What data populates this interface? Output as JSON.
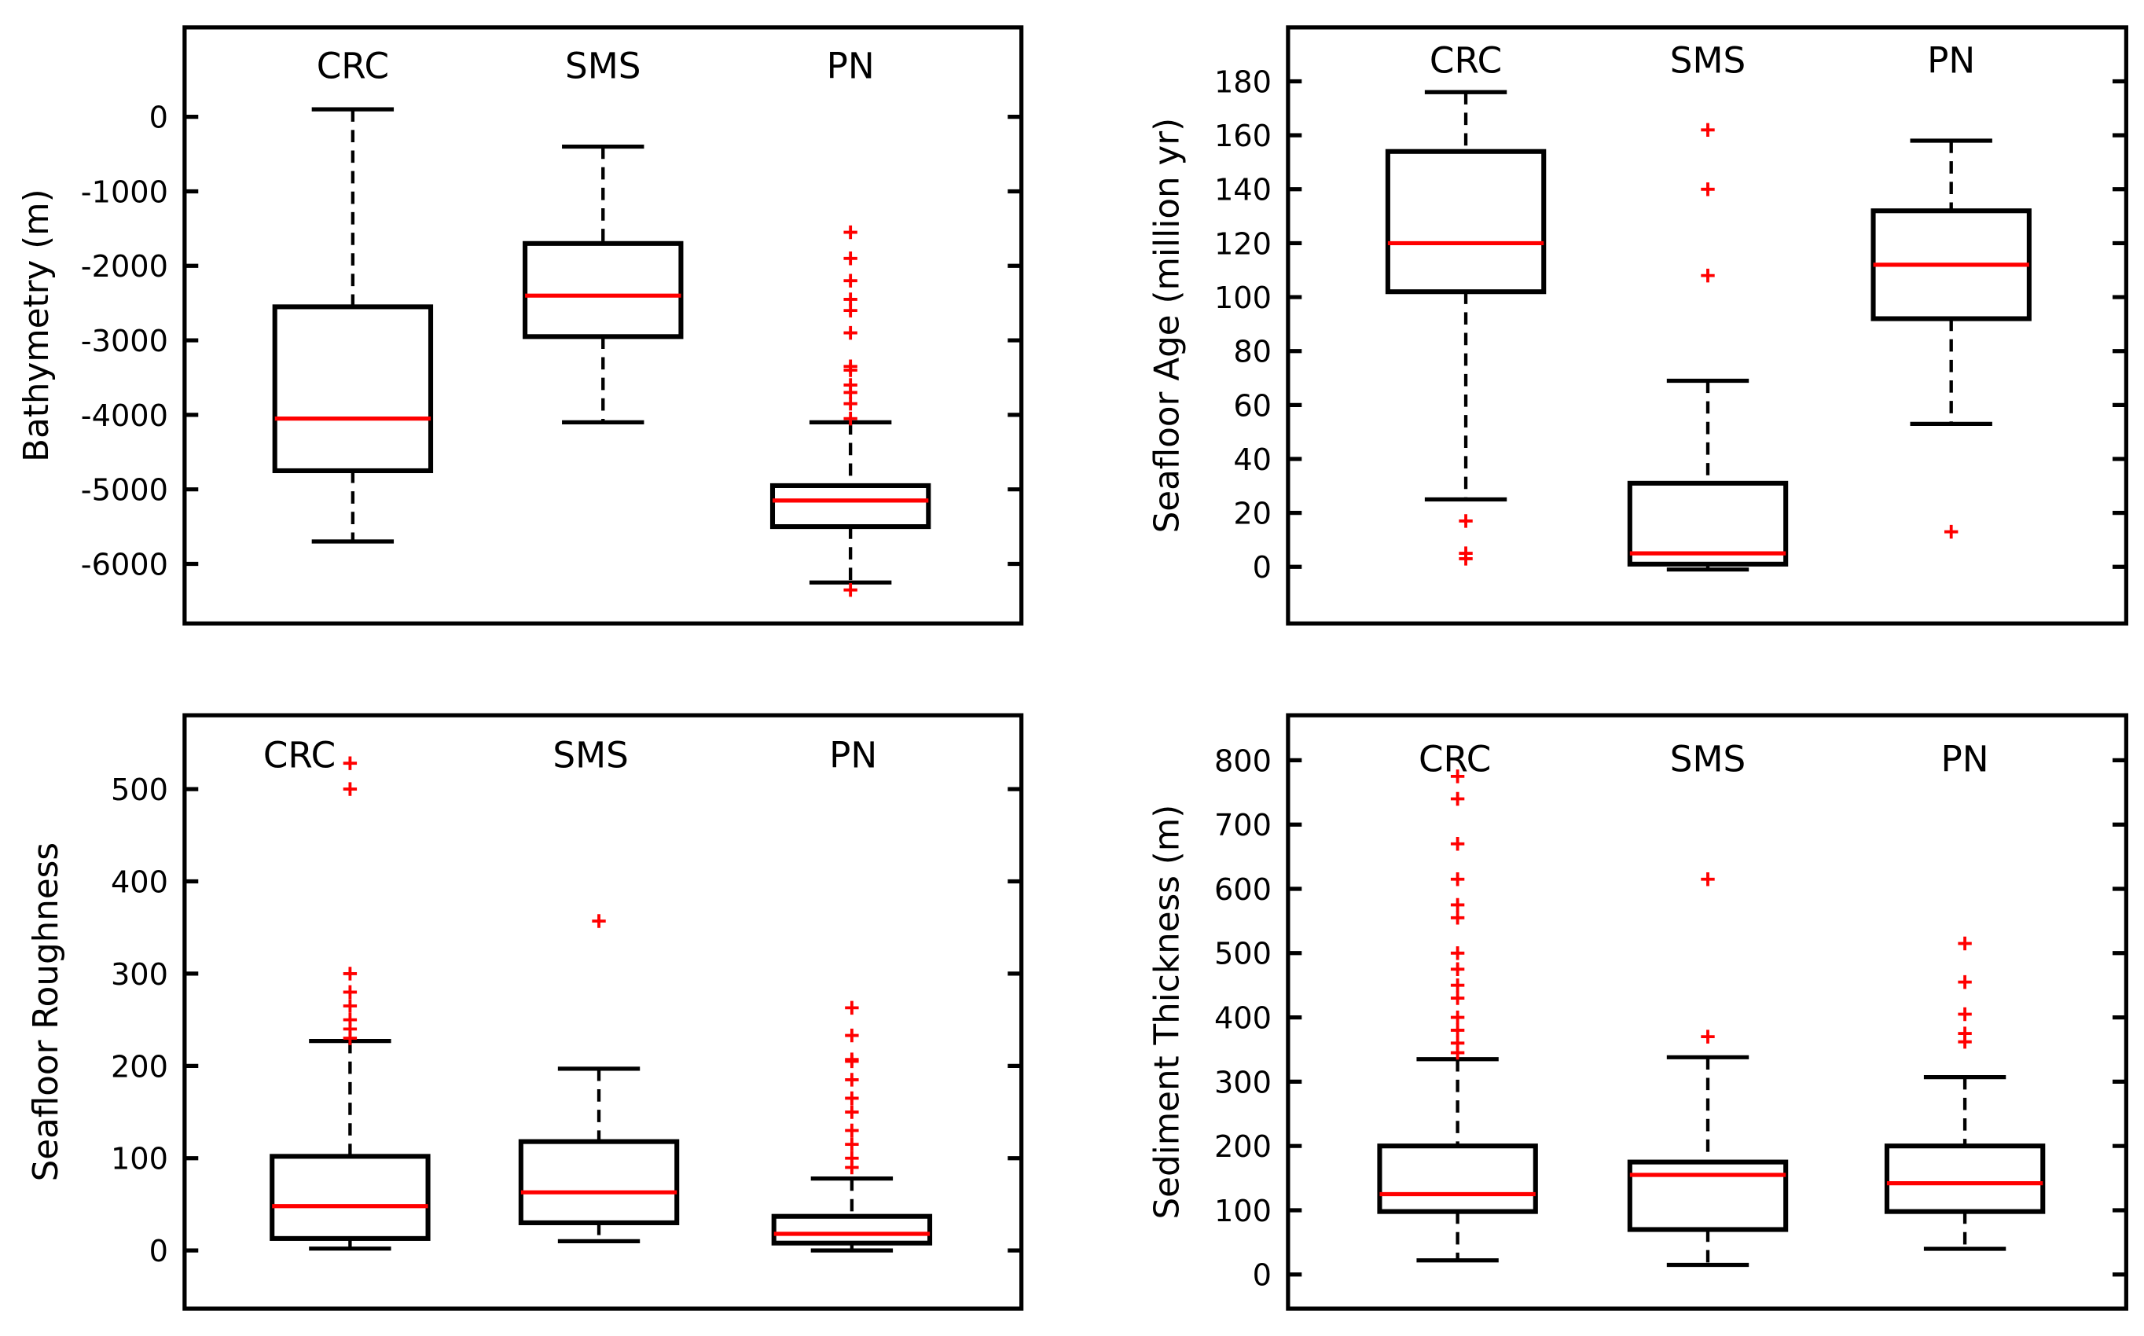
{
  "colors": {
    "box": "#000000",
    "median": "#ff0000",
    "outlier": "#ff0000"
  },
  "chart_data": [
    {
      "type": "box",
      "ylabel": "Bathymetry (m)",
      "ylim": [
        -6800,
        1200
      ],
      "yticks": [
        0,
        -1000,
        -2000,
        -3000,
        -4000,
        -5000,
        -6000
      ],
      "categories": [
        "CRC",
        "SMS",
        "PN"
      ],
      "boxes": [
        {
          "name": "CRC",
          "whisker_high": 100,
          "q3": -2550,
          "median": -4050,
          "q1": -4750,
          "whisker_low": -5700,
          "outliers": []
        },
        {
          "name": "SMS",
          "whisker_high": -400,
          "q3": -1700,
          "median": -2400,
          "q1": -2950,
          "whisker_low": -4100,
          "outliers": []
        },
        {
          "name": "PN",
          "whisker_high": -4100,
          "q3": -4950,
          "median": -5150,
          "q1": -5500,
          "whisker_low": -6250,
          "outliers": [
            -1550,
            -1900,
            -2200,
            -2450,
            -2600,
            -2900,
            -3350,
            -3400,
            -3600,
            -3700,
            -3850,
            -4050,
            -6350
          ]
        }
      ]
    },
    {
      "type": "box",
      "ylabel": "Seafloor Age (million yr)",
      "ylim": [
        -21,
        200
      ],
      "yticks": [
        0,
        20,
        40,
        60,
        80,
        100,
        120,
        140,
        160,
        180
      ],
      "categories": [
        "CRC",
        "SMS",
        "PN"
      ],
      "boxes": [
        {
          "name": "CRC",
          "whisker_high": 176,
          "q3": 154,
          "median": 120,
          "q1": 102,
          "whisker_low": 25,
          "outliers": [
            17,
            5,
            3
          ]
        },
        {
          "name": "SMS",
          "whisker_high": 69,
          "q3": 31,
          "median": 5,
          "q1": 1,
          "whisker_low": -1,
          "outliers": [
            162,
            140,
            108
          ]
        },
        {
          "name": "PN",
          "whisker_high": 158,
          "q3": 132,
          "median": 112,
          "q1": 92,
          "whisker_low": 53,
          "outliers": [
            13
          ]
        }
      ]
    },
    {
      "type": "box",
      "ylabel": "Seafloor Roughness",
      "ylim": [
        -63,
        580
      ],
      "yticks": [
        0,
        100,
        200,
        300,
        400,
        500
      ],
      "categories": [
        "CRC",
        "SMS",
        "PN"
      ],
      "boxes": [
        {
          "name": "CRC",
          "whisker_high": 227,
          "q3": 102,
          "median": 48,
          "q1": 13,
          "whisker_low": 2,
          "outliers": [
            528,
            500,
            300,
            280,
            265,
            250,
            240,
            230
          ]
        },
        {
          "name": "SMS",
          "whisker_high": 197,
          "q3": 118,
          "median": 63,
          "q1": 30,
          "whisker_low": 10,
          "outliers": [
            357
          ]
        },
        {
          "name": "PN",
          "whisker_high": 78,
          "q3": 37,
          "median": 18,
          "q1": 8,
          "whisker_low": 0,
          "outliers": [
            263,
            233,
            207,
            205,
            185,
            165,
            150,
            130,
            115,
            100,
            90
          ]
        }
      ]
    },
    {
      "type": "box",
      "ylabel": "Sediment Thickness (m)",
      "ylim": [
        -53,
        870
      ],
      "yticks": [
        0,
        100,
        200,
        300,
        400,
        500,
        600,
        700,
        800
      ],
      "categories": [
        "CRC",
        "SMS",
        "PN"
      ],
      "boxes": [
        {
          "name": "CRC",
          "whisker_high": 335,
          "q3": 200,
          "median": 125,
          "q1": 98,
          "whisker_low": 22,
          "outliers": [
            775,
            740,
            670,
            615,
            575,
            555,
            500,
            475,
            450,
            430,
            400,
            380,
            360,
            345
          ]
        },
        {
          "name": "SMS",
          "whisker_high": 338,
          "q3": 175,
          "median": 155,
          "q1": 70,
          "whisker_low": 15,
          "outliers": [
            615,
            370
          ]
        },
        {
          "name": "PN",
          "whisker_high": 307,
          "q3": 200,
          "median": 142,
          "q1": 98,
          "whisker_low": 40,
          "outliers": [
            515,
            455,
            405,
            375,
            362
          ]
        }
      ]
    }
  ]
}
